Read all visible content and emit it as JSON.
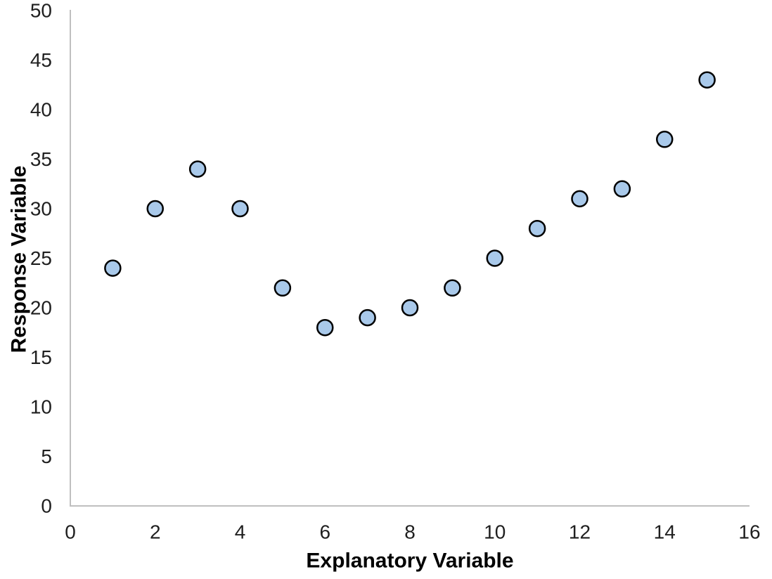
{
  "chart_data": {
    "type": "scatter",
    "title": "",
    "xlabel": "Explanatory Variable",
    "ylabel": "Response Variable",
    "x": [
      1,
      2,
      3,
      4,
      5,
      6,
      7,
      8,
      9,
      10,
      11,
      12,
      13,
      14,
      15
    ],
    "y": [
      24,
      30,
      34,
      30,
      22,
      18,
      19,
      20,
      22,
      25,
      28,
      31,
      32,
      37,
      43
    ],
    "xlim": [
      0,
      16
    ],
    "ylim": [
      0,
      50
    ],
    "x_ticks": [
      0,
      2,
      4,
      6,
      8,
      10,
      12,
      14,
      16
    ],
    "y_ticks": [
      0,
      5,
      10,
      15,
      20,
      25,
      30,
      35,
      40,
      45,
      50
    ],
    "grid": false,
    "legend": "none",
    "marker": {
      "shape": "circle",
      "fill": "#A9C9EA",
      "stroke": "#000000",
      "radius_px": 11,
      "stroke_width_px": 2.5
    },
    "axis_line_color": "#BFBFBF",
    "tick_label_color": "#1f1f1f",
    "axis_title_color": "#000000",
    "background": "#FFFFFF"
  }
}
